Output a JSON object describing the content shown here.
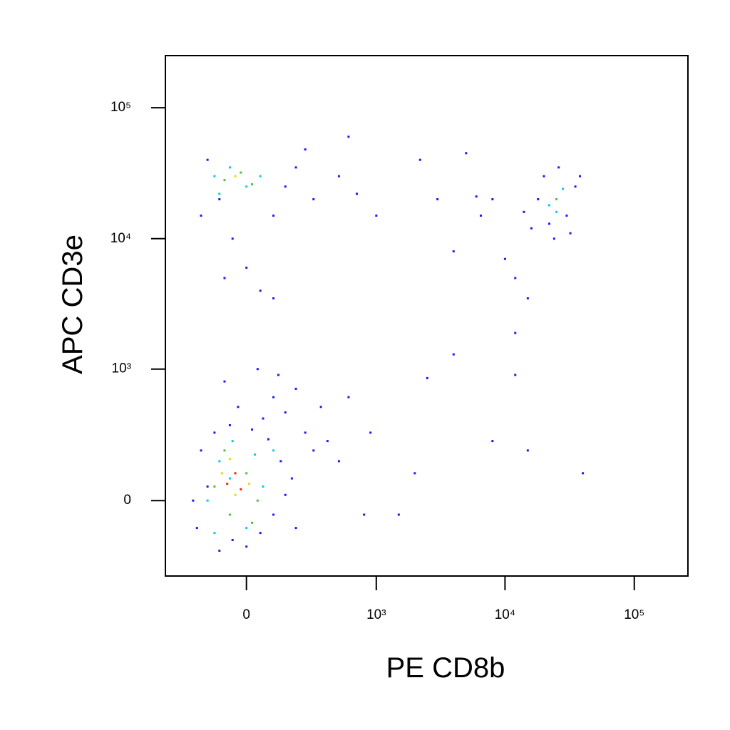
{
  "chart_data": {
    "type": "scatter",
    "x_label": "PE CD8b",
    "y_label": "APC CD3e",
    "scale": "biexponential",
    "xlim": [
      -400,
      260000
    ],
    "ylim": [
      -350,
      250000
    ],
    "xticks": [
      0,
      {
        "value": 1000,
        "label": "10³"
      },
      {
        "value": 10000,
        "label": "10⁴"
      },
      {
        "value": 100000,
        "label": "10⁵"
      }
    ],
    "yticks": [
      0,
      {
        "value": 1000,
        "label": "10³"
      },
      {
        "value": 10000,
        "label": "10⁴"
      },
      {
        "value": 100000,
        "label": "10⁵"
      }
    ],
    "series": [
      {
        "color": "#1a1aff",
        "x": [
          -200,
          -150,
          -100,
          -50,
          0,
          50,
          100,
          150,
          -180,
          -120,
          -60,
          20,
          80,
          130,
          180,
          -220,
          200,
          60,
          -30,
          100,
          150,
          250,
          300,
          400,
          500,
          -80,
          40,
          120,
          200,
          350,
          600,
          800,
          1500,
          2000,
          900,
          15000,
          40000,
          8000,
          2500,
          4000,
          12000,
          12000,
          -150,
          -100,
          -50,
          0,
          50,
          100,
          150,
          200,
          -180,
          300,
          500,
          700,
          1000,
          2200,
          3000,
          5000,
          6000,
          8000,
          4000,
          100,
          -80,
          250,
          600,
          6500,
          10000,
          12000,
          15000,
          18000,
          20000,
          22000,
          26000,
          30000,
          35000,
          16000,
          14000,
          38000,
          24000,
          32000
        ],
        "y": [
          -100,
          50,
          -200,
          -150,
          -180,
          -120,
          -50,
          20,
          200,
          300,
          350,
          320,
          260,
          150,
          80,
          0,
          -100,
          400,
          500,
          600,
          450,
          300,
          200,
          250,
          150,
          800,
          1000,
          900,
          700,
          500,
          600,
          -50,
          -50,
          100,
          300,
          200,
          100,
          250,
          850,
          1300,
          1900,
          900,
          40000,
          20000,
          10000,
          6000,
          4000,
          15000,
          25000,
          35000,
          15000,
          20000,
          30000,
          22000,
          15000,
          40000,
          20000,
          45000,
          21000,
          20000,
          8000,
          3500,
          5000,
          48000,
          60000,
          15000,
          7000,
          5000,
          3500,
          20000,
          30000,
          13000,
          35000,
          15000,
          25000,
          12000,
          16000,
          30000,
          10000,
          11000
        ]
      },
      {
        "color": "#00d0e0",
        "x": [
          -150,
          -100,
          -50,
          0,
          60,
          100,
          -120,
          30,
          -60,
          -120,
          -60,
          0,
          50,
          -100,
          22000,
          28000,
          25000
        ],
        "y": [
          0,
          150,
          250,
          -100,
          50,
          200,
          -120,
          180,
          80,
          30000,
          35000,
          25000,
          30000,
          22000,
          18000,
          24000,
          16000
        ]
      },
      {
        "color": "#50c040",
        "x": [
          -120,
          -60,
          0,
          40,
          -80,
          20,
          -80,
          -20,
          20,
          25000
        ],
        "y": [
          50,
          -50,
          100,
          0,
          200,
          -80,
          28000,
          32000,
          26000,
          20000
        ]
      },
      {
        "color": "#e0e000",
        "x": [
          -90,
          -40,
          10,
          -60,
          -40
        ],
        "y": [
          100,
          20,
          60,
          160,
          30000
        ]
      },
      {
        "color": "#ff2000",
        "x": [
          -70,
          -40,
          -20
        ],
        "y": [
          60,
          100,
          40
        ]
      }
    ]
  }
}
